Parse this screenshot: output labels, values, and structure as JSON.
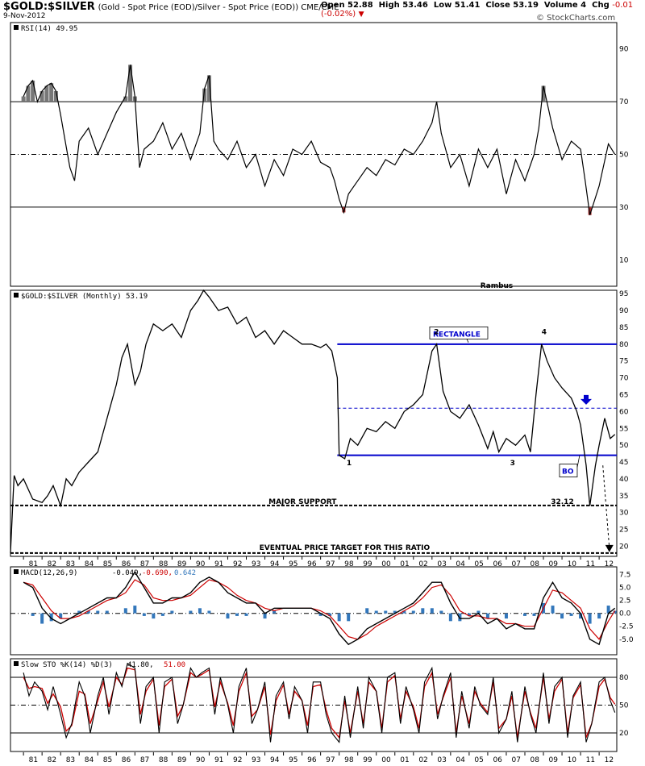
{
  "header": {
    "symbol": "$GOLD:$SILVER",
    "subtitle": "(Gold - Spot Price (EOD)/Silver - Spot Price (EOD)) CME/CME",
    "date": "9-Nov-2012",
    "open_label": "Open",
    "open": "52.88",
    "high_label": "High",
    "high": "53.46",
    "low_label": "Low",
    "low": "51.41",
    "close_label": "Close",
    "close": "53.19",
    "volume_label": "Volume",
    "volume": "4",
    "chg_label": "Chg",
    "chg": "-0.01 (-0.02%)",
    "brand": "© StockCharts.com",
    "colors": {
      "down": "#cc0000",
      "accent": "#0000cc"
    }
  },
  "chart_data": [
    {
      "type": "line",
      "panel": "rsi",
      "legend": "RSI(14) 49.95",
      "ylim": [
        0,
        100
      ],
      "yticks": [
        90,
        70,
        50,
        30,
        10
      ],
      "reference_lines": [
        70,
        50,
        30
      ],
      "x": [
        1981,
        1981.25,
        1981.5,
        1981.75,
        1982,
        1982.25,
        1982.5,
        1982.75,
        1983,
        1983.25,
        1983.5,
        1983.75,
        1984,
        1984.5,
        1985,
        1985.5,
        1986,
        1986.5,
        1986.75,
        1987,
        1987.25,
        1987.5,
        1988,
        1988.5,
        1989,
        1989.5,
        1990,
        1990.5,
        1990.75,
        1991,
        1991.25,
        1991.5,
        1992,
        1992.5,
        1993,
        1993.5,
        1994,
        1994.5,
        1995,
        1995.5,
        1996,
        1996.5,
        1997,
        1997.5,
        1997.75,
        1998,
        1998.25,
        1998.5,
        1999,
        1999.5,
        2000,
        2000.5,
        2001,
        2001.5,
        2002,
        2002.5,
        2003,
        2003.25,
        2003.5,
        2004,
        2004.5,
        2005,
        2005.5,
        2006,
        2006.5,
        2007,
        2007.5,
        2008,
        2008.5,
        2008.75,
        2009,
        2009.5,
        2010,
        2010.5,
        2011,
        2011.25,
        2011.5,
        2012,
        2012.5,
        2012.85
      ],
      "values": [
        72,
        76,
        78,
        70,
        74,
        76,
        77,
        74,
        65,
        55,
        45,
        40,
        55,
        60,
        50,
        58,
        66,
        72,
        84,
        72,
        45,
        52,
        55,
        62,
        52,
        58,
        48,
        58,
        75,
        80,
        55,
        52,
        48,
        55,
        45,
        50,
        38,
        48,
        42,
        52,
        50,
        55,
        47,
        45,
        40,
        33,
        28,
        35,
        40,
        45,
        42,
        48,
        46,
        52,
        50,
        55,
        62,
        70,
        58,
        45,
        50,
        38,
        52,
        45,
        52,
        35,
        48,
        40,
        50,
        60,
        76,
        60,
        48,
        55,
        52,
        40,
        27,
        38,
        54,
        50
      ],
      "series": [
        {
          "name": "RSI(14)",
          "color": "#000000"
        }
      ],
      "last_value": "49.95"
    },
    {
      "type": "line",
      "panel": "price",
      "title": "Rambus",
      "legend": "$GOLD:$SILVER (Monthly) 53.19",
      "ylim": [
        17,
        96
      ],
      "yticks": [
        95,
        90,
        85,
        80,
        75,
        70,
        65,
        60,
        55,
        50,
        45,
        40,
        35,
        30,
        25,
        20
      ],
      "x": [
        1980.3,
        1980.45,
        1980.5,
        1980.7,
        1981,
        1981.5,
        1982,
        1982.3,
        1982.6,
        1983,
        1983.3,
        1983.6,
        1984,
        1984.5,
        1985,
        1985.5,
        1986,
        1986.3,
        1986.6,
        1987,
        1987.3,
        1987.6,
        1988,
        1988.5,
        1989,
        1989.5,
        1990,
        1990.4,
        1990.7,
        1991,
        1991.5,
        1992,
        1992.5,
        1993,
        1993.5,
        1994,
        1994.5,
        1995,
        1995.5,
        1996,
        1996.5,
        1997,
        1997.3,
        1997.6,
        1997.9,
        1998,
        1998.3,
        1998.6,
        1999,
        1999.5,
        2000,
        2000.5,
        2001,
        2001.5,
        2002,
        2002.5,
        2003,
        2003.25,
        2003.6,
        2004,
        2004.5,
        2005,
        2005.5,
        2006,
        2006.3,
        2006.6,
        2007,
        2007.5,
        2008,
        2008.3,
        2008.6,
        2008.9,
        2009.2,
        2009.6,
        2010,
        2010.5,
        2010.8,
        2011,
        2011.3,
        2011.5,
        2011.8,
        2012,
        2012.3,
        2012.6,
        2012.85
      ],
      "values": [
        18,
        36,
        41,
        38,
        40,
        34,
        33,
        35,
        38,
        32,
        40,
        38,
        42,
        45,
        48,
        58,
        68,
        76,
        80,
        68,
        72,
        80,
        86,
        84,
        86,
        82,
        90,
        93,
        96,
        94,
        90,
        91,
        86,
        88,
        82,
        84,
        80,
        84,
        82,
        80,
        80,
        79,
        80,
        78,
        70,
        47,
        46,
        52,
        50,
        55,
        54,
        57,
        55,
        60,
        62,
        65,
        78,
        80,
        66,
        60,
        58,
        62,
        56,
        49,
        54,
        48,
        52,
        50,
        53,
        48,
        65,
        80,
        75,
        70,
        67,
        64,
        60,
        56,
        44,
        32,
        44,
        50,
        58,
        52,
        53.19
      ],
      "rectangle": {
        "top": 80,
        "middle": 61,
        "bottom": 47,
        "x_start": 1997.9,
        "x_end": 2012.9
      },
      "major_support": {
        "value": 32.12,
        "label": "MAJOR SUPPORT",
        "level_label": "32.12"
      },
      "price_target": {
        "value": 18,
        "label": "EVENTUAL PRICE TARGET FOR THIS RATIO"
      },
      "annotations": [
        {
          "text": "RECTANGLE",
          "x": 2004.7,
          "y": 82.5
        },
        {
          "text": "1",
          "x": 1998.4,
          "y": 44
        },
        {
          "text": "2",
          "x": 2003.1,
          "y": 83
        },
        {
          "text": "3",
          "x": 2007.2,
          "y": 44
        },
        {
          "text": "4",
          "x": 2008.9,
          "y": 83
        },
        {
          "text": "BO",
          "x": 2010.3,
          "y": 42
        }
      ],
      "series": [
        {
          "name": "$GOLD:$SILVER (Monthly)",
          "color": "#000000"
        }
      ],
      "last_value": "53.19"
    },
    {
      "type": "line",
      "panel": "macd",
      "legend": "MACD(12,26,9)",
      "legend_values": [
        "-0.049",
        "-0.690",
        "0.642"
      ],
      "legend_colors": [
        "#000000",
        "#cc0000",
        "#3377bb"
      ],
      "ylim": [
        -8,
        9
      ],
      "yticks": [
        7.5,
        5.0,
        2.5,
        0.0,
        -2.5,
        -5.0
      ],
      "x": [
        1981,
        1981.5,
        1982,
        1982.5,
        1983,
        1983.5,
        1984,
        1984.5,
        1985,
        1985.5,
        1986,
        1986.5,
        1987,
        1987.5,
        1988,
        1988.5,
        1989,
        1989.5,
        1990,
        1990.5,
        1991,
        1991.5,
        1992,
        1992.5,
        1993,
        1993.5,
        1994,
        1994.5,
        1995,
        1995.5,
        1996,
        1996.5,
        1997,
        1997.5,
        1998,
        1998.5,
        1999,
        1999.5,
        2000,
        2000.5,
        2001,
        2001.5,
        2002,
        2002.5,
        2003,
        2003.5,
        2004,
        2004.5,
        2005,
        2005.5,
        2006,
        2006.5,
        2007,
        2007.5,
        2008,
        2008.5,
        2009,
        2009.5,
        2010,
        2010.5,
        2011,
        2011.5,
        2012,
        2012.5,
        2012.85
      ],
      "series": [
        {
          "name": "MACD",
          "color": "#000000",
          "values": [
            6,
            5,
            1,
            -1,
            -2,
            -1,
            0,
            1,
            2,
            3,
            3,
            5,
            8,
            5,
            2,
            2,
            3,
            3,
            4,
            6,
            7,
            6,
            4,
            3,
            2,
            2,
            0,
            1,
            1,
            1,
            1,
            1,
            0,
            -1,
            -4,
            -6,
            -5,
            -3,
            -2,
            -1,
            0,
            1,
            2,
            4,
            6,
            6,
            2,
            -1,
            -1,
            0,
            -2,
            -1,
            -3,
            -2,
            -3,
            -3,
            3,
            6,
            3,
            2,
            0,
            -5,
            -6,
            0,
            1
          ]
        },
        {
          "name": "Signal",
          "color": "#cc0000",
          "values": [
            6,
            5.5,
            3,
            0.5,
            -1,
            -1,
            -0.5,
            0.5,
            1.5,
            2.5,
            3,
            4,
            6.5,
            5.5,
            3,
            2.5,
            2.5,
            3,
            3.5,
            5,
            6.5,
            6,
            5,
            3.5,
            2.5,
            2,
            1,
            0.5,
            1,
            1,
            1,
            1,
            0.5,
            -0.5,
            -2.5,
            -4.5,
            -5,
            -4,
            -2.5,
            -1.5,
            -0.5,
            0.5,
            1.5,
            3,
            5,
            5.5,
            3.5,
            0.5,
            -0.5,
            -0.5,
            -1,
            -1,
            -2,
            -2,
            -2.5,
            -2.5,
            1,
            4.5,
            4,
            2.5,
            1,
            -3,
            -5,
            -1.5,
            0.5
          ]
        },
        {
          "name": "Histogram",
          "color": "#3377bb",
          "values": [
            0,
            -0.5,
            -2,
            -1.5,
            -1,
            0,
            0.5,
            0.5,
            0.5,
            0.5,
            0,
            1,
            1.5,
            -0.5,
            -1,
            -0.5,
            0.5,
            0,
            0.5,
            1,
            0.5,
            0,
            -1,
            -0.5,
            -0.5,
            0,
            -1,
            0.5,
            0,
            0,
            0,
            0,
            -0.5,
            -0.5,
            -1.5,
            -1.5,
            0,
            1,
            0.5,
            0.5,
            0.5,
            0.5,
            0.5,
            1,
            1,
            0.5,
            -1.5,
            -1.5,
            -0.5,
            0.5,
            -1,
            0,
            -1,
            0,
            -0.5,
            -0.5,
            2,
            1.5,
            -1,
            -0.5,
            -1,
            -2,
            -1,
            1.5,
            0.5
          ]
        }
      ]
    },
    {
      "type": "line",
      "panel": "sto",
      "legend": "Slow STO %K(14) %D(3)",
      "legend_values": [
        "41.80",
        "51.00"
      ],
      "legend_colors": [
        "#000000",
        "#cc0000"
      ],
      "ylim": [
        0,
        100
      ],
      "yticks": [
        80,
        50,
        20
      ],
      "reference_lines": [
        80,
        50,
        20
      ],
      "x": [
        1981,
        1981.3,
        1981.6,
        1982,
        1982.3,
        1982.6,
        1983,
        1983.3,
        1983.6,
        1984,
        1984.3,
        1984.6,
        1985,
        1985.3,
        1985.6,
        1986,
        1986.3,
        1986.6,
        1987,
        1987.3,
        1987.6,
        1988,
        1988.3,
        1988.6,
        1989,
        1989.3,
        1989.6,
        1990,
        1990.3,
        1990.6,
        1991,
        1991.3,
        1991.6,
        1992,
        1992.3,
        1992.6,
        1993,
        1993.3,
        1993.6,
        1994,
        1994.3,
        1994.6,
        1995,
        1995.3,
        1995.6,
        1996,
        1996.3,
        1996.6,
        1997,
        1997.3,
        1997.6,
        1998,
        1998.3,
        1998.6,
        1999,
        1999.3,
        1999.6,
        2000,
        2000.3,
        2000.6,
        2001,
        2001.3,
        2001.6,
        2002,
        2002.3,
        2002.6,
        2003,
        2003.3,
        2003.6,
        2004,
        2004.3,
        2004.6,
        2005,
        2005.3,
        2005.6,
        2006,
        2006.3,
        2006.6,
        2007,
        2007.3,
        2007.6,
        2008,
        2008.3,
        2008.6,
        2009,
        2009.3,
        2009.6,
        2010,
        2010.3,
        2010.6,
        2011,
        2011.3,
        2011.6,
        2012,
        2012.3,
        2012.6,
        2012.85
      ],
      "series": [
        {
          "name": "%K",
          "color": "#000000",
          "values": [
            85,
            60,
            75,
            65,
            45,
            70,
            40,
            15,
            30,
            75,
            60,
            20,
            60,
            80,
            40,
            85,
            70,
            95,
            90,
            30,
            70,
            80,
            20,
            75,
            80,
            30,
            50,
            90,
            80,
            85,
            90,
            40,
            80,
            50,
            20,
            70,
            90,
            30,
            45,
            75,
            10,
            60,
            75,
            35,
            70,
            55,
            20,
            75,
            75,
            40,
            20,
            10,
            60,
            15,
            70,
            25,
            80,
            65,
            20,
            80,
            85,
            30,
            70,
            45,
            20,
            75,
            90,
            35,
            60,
            85,
            15,
            65,
            25,
            70,
            50,
            40,
            80,
            20,
            35,
            65,
            10,
            70,
            40,
            20,
            85,
            30,
            70,
            80,
            15,
            60,
            75,
            10,
            30,
            75,
            80,
            55,
            42
          ]
        },
        {
          "name": "%D",
          "color": "#cc0000",
          "values": [
            80,
            68,
            70,
            68,
            52,
            62,
            48,
            22,
            28,
            65,
            62,
            30,
            55,
            75,
            48,
            80,
            72,
            90,
            88,
            40,
            65,
            78,
            28,
            70,
            78,
            38,
            50,
            85,
            80,
            83,
            88,
            48,
            75,
            52,
            28,
            65,
            85,
            38,
            45,
            70,
            18,
            55,
            72,
            40,
            65,
            55,
            28,
            70,
            72,
            45,
            25,
            15,
            55,
            20,
            65,
            30,
            75,
            65,
            25,
            75,
            82,
            35,
            65,
            48,
            25,
            70,
            85,
            40,
            58,
            80,
            20,
            60,
            30,
            65,
            52,
            42,
            75,
            25,
            35,
            60,
            15,
            65,
            42,
            25,
            80,
            35,
            65,
            78,
            20,
            58,
            72,
            15,
            30,
            70,
            78,
            58,
            51
          ]
        }
      ]
    }
  ],
  "x_axis": {
    "labels": [
      "81",
      "82",
      "83",
      "84",
      "85",
      "86",
      "87",
      "88",
      "89",
      "90",
      "91",
      "92",
      "93",
      "94",
      "95",
      "96",
      "97",
      "98",
      "99",
      "00",
      "01",
      "02",
      "03",
      "04",
      "05",
      "06",
      "07",
      "08",
      "09",
      "10",
      "11",
      "12"
    ],
    "label_years": [
      1981,
      1982,
      1983,
      1984,
      1985,
      1986,
      1987,
      1988,
      1989,
      1990,
      1991,
      1992,
      1993,
      1994,
      1995,
      1996,
      1997,
      1998,
      1999,
      2000,
      2001,
      2002,
      2003,
      2004,
      2005,
      2006,
      2007,
      2008,
      2009,
      2010,
      2011,
      2012
    ]
  }
}
